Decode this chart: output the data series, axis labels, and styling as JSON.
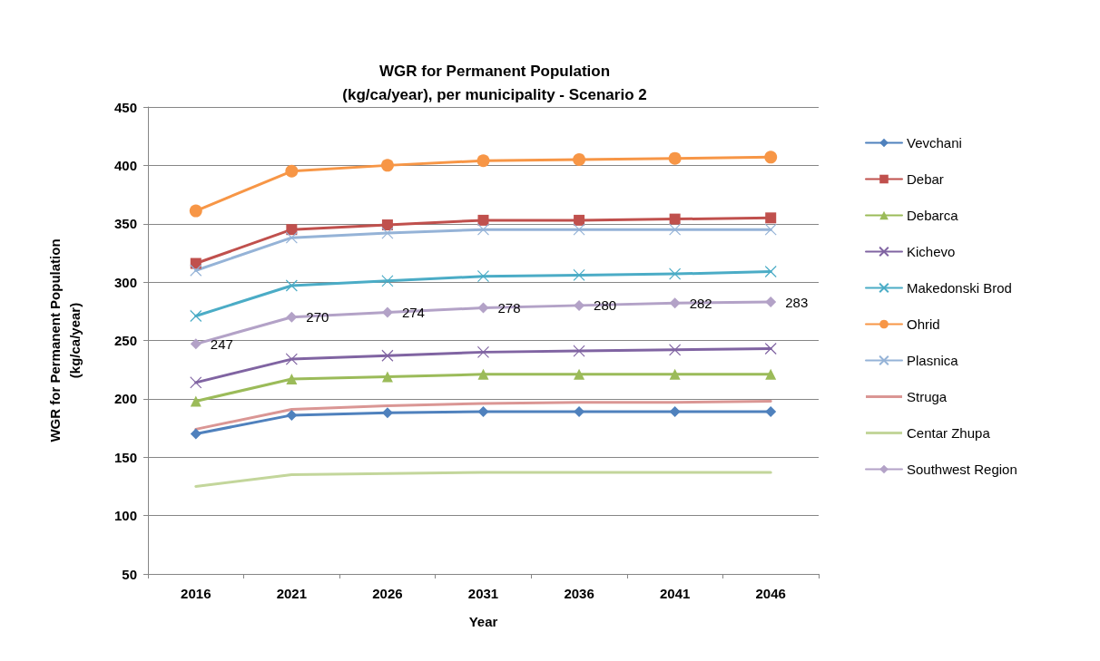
{
  "chart_data": {
    "type": "line",
    "title": "WGR for Permanent Population\n(kg/ca/year), per municipality - Scenario 2",
    "xlabel": "Year",
    "ylabel": "WGR for Permanent Population\n(kg/ca/year)",
    "categories": [
      "2016",
      "2021",
      "2026",
      "2031",
      "2036",
      "2041",
      "2046"
    ],
    "ylim": [
      50,
      450
    ],
    "yticks": [
      50,
      100,
      150,
      200,
      250,
      300,
      350,
      400,
      450
    ],
    "grid": "y",
    "legend": "right",
    "series": [
      {
        "name": "Vevchani",
        "color": "#4f81bd",
        "marker": "diamond",
        "values": [
          170,
          186,
          188,
          189,
          189,
          189,
          189
        ]
      },
      {
        "name": "Debar",
        "color": "#c0504d",
        "marker": "square",
        "values": [
          316,
          345,
          349,
          353,
          353,
          354,
          355
        ]
      },
      {
        "name": "Debarca",
        "color": "#9bbb59",
        "marker": "triangle",
        "values": [
          198,
          217,
          219,
          221,
          221,
          221,
          221
        ]
      },
      {
        "name": "Kichevo",
        "color": "#8064a2",
        "marker": "cross",
        "values": [
          214,
          234,
          237,
          240,
          241,
          242,
          243
        ]
      },
      {
        "name": "Makedonski Brod",
        "color": "#4bacc6",
        "marker": "cross",
        "values": [
          271,
          297,
          301,
          305,
          306,
          307,
          309
        ]
      },
      {
        "name": "Ohrid",
        "color": "#f79646",
        "marker": "circle",
        "values": [
          361,
          395,
          400,
          404,
          405,
          406,
          407
        ]
      },
      {
        "name": "Plasnica",
        "color": "#95b3d7",
        "marker": "cross",
        "values": [
          310,
          338,
          342,
          345,
          345,
          345,
          345
        ]
      },
      {
        "name": "Struga",
        "color": "#da9694",
        "marker": "none",
        "values": [
          174,
          191,
          194,
          196,
          197,
          197,
          198
        ]
      },
      {
        "name": "Centar Zhupa",
        "color": "#c3d69b",
        "marker": "none",
        "values": [
          125,
          135,
          136,
          137,
          137,
          137,
          137
        ]
      },
      {
        "name": "Southwest Region",
        "color": "#b3a2c7",
        "marker": "diamond",
        "values": [
          247,
          270,
          274,
          278,
          280,
          282,
          283
        ],
        "value_labels": [
          "247",
          "270",
          "274",
          "278",
          "280",
          "282",
          "283"
        ]
      }
    ]
  }
}
